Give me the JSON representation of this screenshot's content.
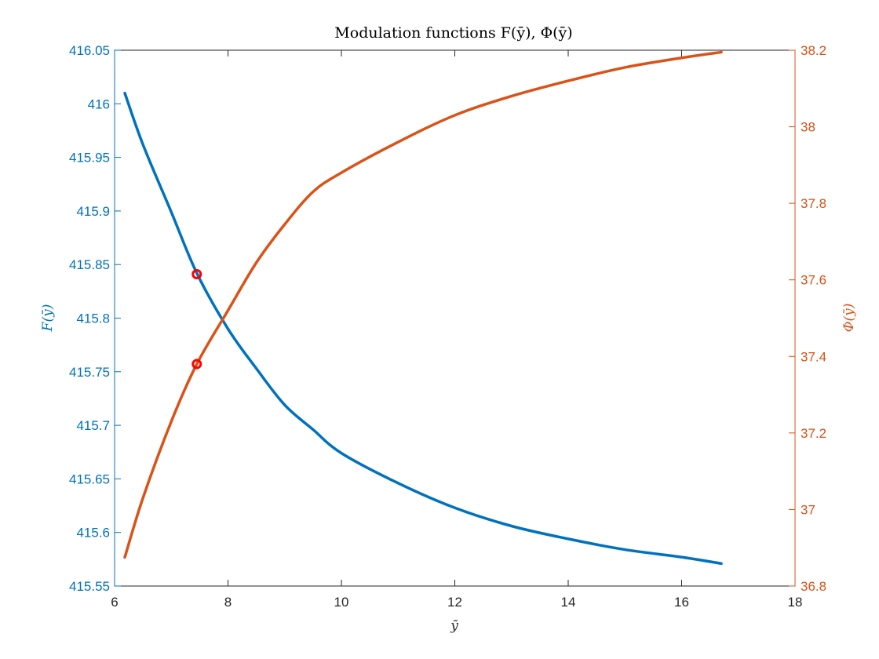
{
  "chart_data": {
    "type": "line",
    "title": "Modulation functions F(ȳ), Φ(ȳ)",
    "xlabel": "ȳ",
    "ylabel_left": "F(ȳ)",
    "ylabel_right": "Φ(ȳ)",
    "xlim": [
      6,
      18
    ],
    "ylim_left": [
      415.55,
      416.05
    ],
    "ylim_right": [
      36.8,
      38.2
    ],
    "x_ticks": [
      "6",
      "8",
      "10",
      "12",
      "14",
      "16",
      "18"
    ],
    "y_left_ticks": [
      "415.55",
      "415.6",
      "415.65",
      "415.7",
      "415.75",
      "415.8",
      "415.85",
      "415.9",
      "415.95",
      "416",
      "416.05"
    ],
    "y_right_ticks": [
      "36.8",
      "37",
      "37.2",
      "37.4",
      "37.6",
      "37.8",
      "38",
      "38.2"
    ],
    "grid": false,
    "colors": {
      "left": "#0072BD",
      "right": "#D95319",
      "marker": "#FF0000",
      "axis": "#262626"
    },
    "series": [
      {
        "name": "F(ȳ)",
        "axis": "left",
        "x": [
          6.18,
          6.5,
          7.0,
          7.45,
          8.0,
          8.5,
          9.0,
          9.5,
          10.0,
          11.0,
          12.0,
          13.0,
          14.0,
          15.0,
          16.0,
          16.7
        ],
        "y": [
          416.01,
          415.962,
          415.899,
          415.842,
          415.79,
          415.753,
          415.719,
          415.696,
          415.674,
          415.646,
          415.623,
          415.606,
          415.594,
          415.584,
          415.577,
          415.571
        ]
      },
      {
        "name": "Φ(ȳ)",
        "axis": "right",
        "x": [
          6.18,
          6.5,
          7.0,
          7.45,
          8.0,
          8.5,
          9.0,
          9.5,
          10.0,
          11.0,
          12.0,
          13.0,
          14.0,
          15.0,
          16.0,
          16.7
        ],
        "y": [
          36.875,
          37.03,
          37.23,
          37.38,
          37.52,
          37.645,
          37.745,
          37.83,
          37.88,
          37.96,
          38.03,
          38.08,
          38.12,
          38.155,
          38.18,
          38.195
        ]
      }
    ],
    "markers": [
      {
        "axis": "left",
        "x": 7.45,
        "y": 415.841
      },
      {
        "axis": "right",
        "x": 7.45,
        "y": 37.38
      }
    ]
  }
}
